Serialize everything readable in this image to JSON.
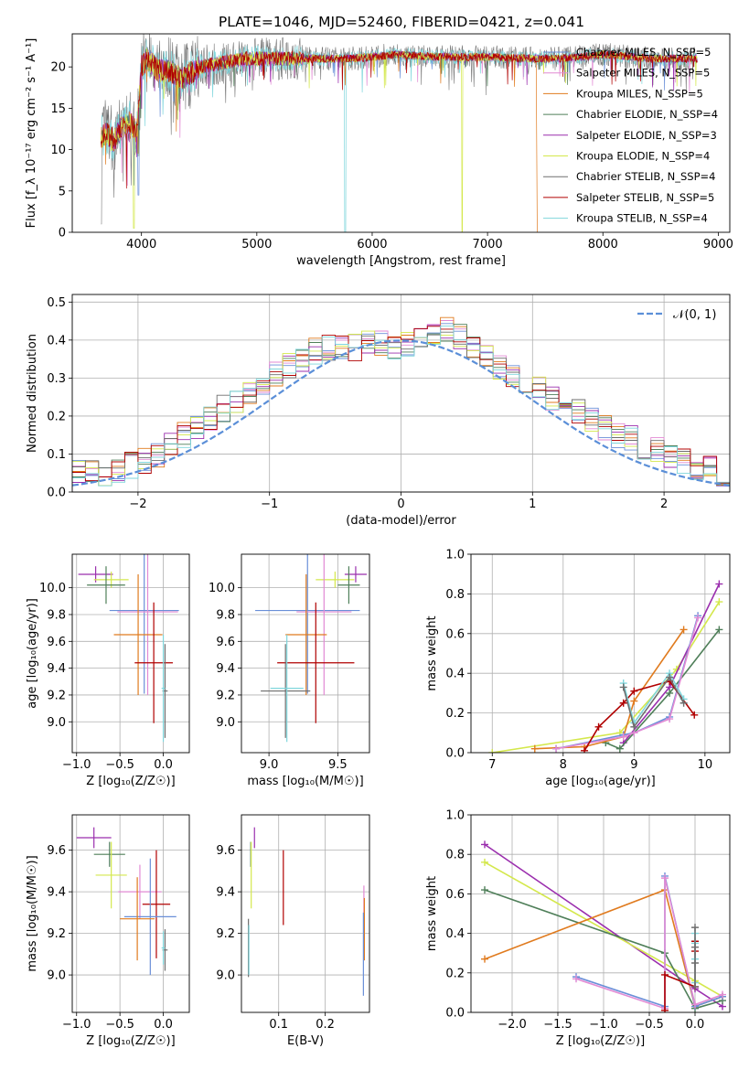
{
  "figure_title": "PLATE=1046, MJD=52460, FIBERID=0421, z=0.041",
  "colors": {
    "chabrier_miles": "#6a8fd8",
    "salpeter_miles": "#e28ad4",
    "kroupa_miles": "#e07b1f",
    "chabrier_elodie": "#4f7f59",
    "salpeter_elodie": "#9b2fae",
    "kroupa_elodie": "#d4e84c",
    "chabrier_stelib": "#6e6e6e",
    "salpeter_stelib": "#b00000",
    "kroupa_stelib": "#7fd6dc",
    "normal_curve": "#5b8fd8",
    "grid": "#b0b0b0"
  },
  "chart_data": [
    {
      "id": "spectrum",
      "type": "line",
      "title": "PLATE=1046, MJD=52460, FIBERID=0421, z=0.041",
      "xlabel": "wavelength [Angstrom, rest frame]",
      "ylabel": "Flux [f_λ 10⁻¹⁷ erg cm⁻² s⁻¹ A⁻¹]",
      "xlim": [
        3400,
        9100
      ],
      "ylim": [
        0,
        24
      ],
      "xticks": [
        "4000",
        "5000",
        "6000",
        "7000",
        "8000",
        "9000"
      ],
      "yticks": [
        "0",
        "5",
        "10",
        "15",
        "20"
      ],
      "grid": false,
      "legend_position": "right",
      "continuum": {
        "x": [
          3650,
          3700,
          3760,
          3820,
          3900,
          3960,
          4000,
          4050,
          4150,
          4250,
          4350,
          4500,
          4700,
          4900,
          5100,
          5300,
          5500,
          5800,
          6000,
          6200,
          6400,
          6600,
          6800,
          7000,
          7200,
          7400,
          7600,
          7800,
          8000,
          8200,
          8400,
          8600,
          8800
        ],
        "y": [
          11.5,
          12.0,
          11.0,
          12.5,
          13.5,
          12.0,
          20.0,
          21.0,
          19.5,
          19.5,
          18.5,
          20.0,
          20.5,
          21.0,
          21.0,
          21.0,
          21.0,
          21.0,
          21.2,
          21.5,
          21.3,
          21.2,
          21.2,
          21.2,
          21.1,
          21.0,
          21.0,
          21.2,
          21.5,
          21.3,
          21.0,
          21.0,
          21.0
        ]
      },
      "features": {
        "chabrier_stelib_drop": [
          3650,
          1.0
        ],
        "kroupa_elodie_drop": [
          3935,
          0.5
        ],
        "chabrier_miles_drop": [
          3975,
          4.5
        ],
        "kroupa_stelib_gap": [
          5765,
          0.0
        ],
        "kroupa_elodie_gap": [
          6780,
          0.0
        ],
        "kroupa_miles_cut": [
          7425,
          0.0
        ]
      },
      "series": [
        {
          "name": "Chabrier MILES, N_SSP=5",
          "color": "#6a8fd8"
        },
        {
          "name": "Salpeter MILES, N_SSP=5",
          "color": "#e28ad4"
        },
        {
          "name": "Kroupa MILES, N_SSP=5",
          "color": "#e07b1f"
        },
        {
          "name": "Chabrier ELODIE, N_SSP=4",
          "color": "#4f7f59"
        },
        {
          "name": "Salpeter ELODIE, N_SSP=3",
          "color": "#9b2fae"
        },
        {
          "name": "Kroupa ELODIE, N_SSP=4",
          "color": "#d4e84c"
        },
        {
          "name": "Chabrier STELIB, N_SSP=4",
          "color": "#6e6e6e"
        },
        {
          "name": "Salpeter STELIB, N_SSP=5",
          "color": "#b00000"
        },
        {
          "name": "Kroupa STELIB, N_SSP=4",
          "color": "#7fd6dc"
        }
      ]
    },
    {
      "id": "residuals",
      "type": "line",
      "xlabel": "(data-model)/error",
      "ylabel": "Normed distribution",
      "xlim": [
        -2.5,
        2.5
      ],
      "ylim": [
        0,
        0.52
      ],
      "xticks": [
        "−2",
        "−1",
        "0",
        "1",
        "2"
      ],
      "yticks": [
        "0.0",
        "0.1",
        "0.2",
        "0.3",
        "0.4",
        "0.5"
      ],
      "grid": true,
      "legend_position": "top-right",
      "legend": "𝒩(0, 1)",
      "bin_width": 0.1,
      "histogram_envelope": [
        0.03,
        0.03,
        0.05,
        0.05,
        0.05,
        0.06,
        0.07,
        0.08,
        0.1,
        0.12,
        0.15,
        0.17,
        0.19,
        0.22,
        0.24,
        0.26,
        0.28,
        0.31,
        0.33,
        0.35,
        0.37,
        0.38,
        0.38,
        0.38,
        0.39,
        0.39,
        0.38,
        0.39,
        0.4,
        0.42,
        0.43,
        0.41,
        0.38,
        0.36,
        0.33,
        0.31,
        0.29,
        0.27,
        0.25,
        0.23,
        0.21,
        0.19,
        0.17,
        0.15,
        0.14,
        0.12,
        0.11,
        0.09,
        0.08,
        0.06,
        0.06,
        0.05,
        0.04,
        0.04,
        0.03
      ],
      "normal": {
        "mu": 0,
        "sigma": 1
      }
    },
    {
      "id": "age_vs_Z",
      "type": "scatter",
      "xlabel": "Z [log₁₀(Z/Z☉)]",
      "ylabel": "age  [log₁₀(age/yr)]",
      "xlim": [
        -1.05,
        0.3
      ],
      "ylim": [
        8.77,
        10.25
      ],
      "xticks": [
        "−1.0",
        "−0.5",
        "0.0"
      ],
      "yticks": [
        "9.0",
        "9.2",
        "9.4",
        "9.6",
        "9.8",
        "10.0"
      ],
      "grid": true,
      "points": [
        {
          "series": "Salpeter ELODIE",
          "color": "#9b2fae",
          "x": -0.78,
          "xerr": 0.2,
          "y": 10.1,
          "yerr": 0.06
        },
        {
          "series": "Kroupa ELODIE",
          "color": "#d4e84c",
          "x": -0.6,
          "xerr": 0.2,
          "y": 10.06,
          "yerr": 0.06
        },
        {
          "series": "Chabrier ELODIE",
          "color": "#4f7f59",
          "x": -0.66,
          "xerr": 0.22,
          "y": 10.02,
          "yerr": 0.14
        },
        {
          "series": "Chabrier MILES",
          "color": "#6a8fd8",
          "x": -0.22,
          "xerr": 0.4,
          "y": 9.83,
          "yerr": 0.62
        },
        {
          "series": "Salpeter MILES",
          "color": "#e28ad4",
          "x": -0.18,
          "xerr": 0.35,
          "y": 9.82,
          "yerr": 0.62
        },
        {
          "series": "Kroupa MILES",
          "color": "#e07b1f",
          "x": -0.29,
          "xerr": 0.28,
          "y": 9.65,
          "yerr": 0.45
        },
        {
          "series": "Salpeter STELIB",
          "color": "#b00000",
          "x": -0.11,
          "xerr": 0.22,
          "y": 9.44,
          "yerr": 0.45
        },
        {
          "series": "Chabrier STELIB",
          "color": "#6e6e6e",
          "x": 0.02,
          "xerr": 0.03,
          "y": 9.23,
          "yerr": 0.35
        },
        {
          "series": "Kroupa STELIB",
          "color": "#7fd6dc",
          "x": 0.0,
          "xerr": 0.02,
          "y": 9.25,
          "yerr": 0.4
        }
      ]
    },
    {
      "id": "age_vs_mass",
      "type": "scatter",
      "xlabel": "mass [log₁₀(M/M☉)]",
      "xlim": [
        8.8,
        9.73
      ],
      "ylim": [
        8.77,
        10.25
      ],
      "xticks": [
        "9.0",
        "9.5"
      ],
      "yticks": [
        "9.0",
        "9.2",
        "9.4",
        "9.6",
        "9.8",
        "10.0"
      ],
      "grid": true,
      "points": [
        {
          "series": "Salpeter ELODIE",
          "color": "#9b2fae",
          "x": 9.63,
          "xerr": 0.08,
          "y": 10.1,
          "yerr": 0.06
        },
        {
          "series": "Kroupa ELODIE",
          "color": "#d4e84c",
          "x": 9.48,
          "xerr": 0.14,
          "y": 10.06,
          "yerr": 0.06
        },
        {
          "series": "Chabrier ELODIE",
          "color": "#4f7f59",
          "x": 9.58,
          "xerr": 0.08,
          "y": 10.02,
          "yerr": 0.14
        },
        {
          "series": "Chabrier MILES",
          "color": "#6a8fd8",
          "x": 9.28,
          "xerr": 0.38,
          "y": 9.83,
          "yerr": 0.62
        },
        {
          "series": "Salpeter MILES",
          "color": "#e28ad4",
          "x": 9.4,
          "xerr": 0.2,
          "y": 9.82,
          "yerr": 0.62
        },
        {
          "series": "Kroupa MILES",
          "color": "#e07b1f",
          "x": 9.27,
          "xerr": 0.15,
          "y": 9.65,
          "yerr": 0.45
        },
        {
          "series": "Salpeter STELIB",
          "color": "#b00000",
          "x": 9.34,
          "xerr": 0.28,
          "y": 9.44,
          "yerr": 0.45
        },
        {
          "series": "Chabrier STELIB",
          "color": "#6e6e6e",
          "x": 9.12,
          "xerr": 0.18,
          "y": 9.23,
          "yerr": 0.35
        },
        {
          "series": "Kroupa STELIB",
          "color": "#7fd6dc",
          "x": 9.13,
          "xerr": 0.12,
          "y": 9.25,
          "yerr": 0.4
        }
      ]
    },
    {
      "id": "mass_weight_vs_age",
      "type": "line",
      "xlabel": "age  [log₁₀(age/yr)]",
      "ylabel": "mass weight",
      "xlim": [
        6.7,
        10.35
      ],
      "ylim": [
        0,
        1.0
      ],
      "xticks": [
        "7",
        "8",
        "9",
        "10"
      ],
      "yticks": [
        "0.0",
        "0.2",
        "0.4",
        "0.6",
        "0.8",
        "1.0"
      ],
      "grid": true,
      "series": [
        {
          "name": "Kroupa ELODIE",
          "color": "#d4e84c",
          "x": [
            7.0,
            8.8,
            9.6,
            10.2
          ],
          "y": [
            0.0,
            0.1,
            0.42,
            0.76
          ]
        },
        {
          "name": "Salpeter ELODIE",
          "color": "#9b2fae",
          "x": [
            8.85,
            9.5,
            10.2
          ],
          "y": [
            0.05,
            0.33,
            0.85
          ]
        },
        {
          "name": "Chabrier ELODIE",
          "color": "#4f7f59",
          "x": [
            8.6,
            8.8,
            9.5,
            10.2
          ],
          "y": [
            0.05,
            0.02,
            0.3,
            0.62
          ]
        },
        {
          "name": "Kroupa MILES",
          "color": "#e07b1f",
          "x": [
            7.6,
            8.3,
            8.85,
            9.0,
            9.7
          ],
          "y": [
            0.02,
            0.03,
            0.08,
            0.26,
            0.62
          ]
        },
        {
          "name": "Chabrier MILES",
          "color": "#6a8fd8",
          "x": [
            7.9,
            8.85,
            9.0,
            9.5,
            9.9
          ],
          "y": [
            0.02,
            0.09,
            0.1,
            0.18,
            0.69
          ]
        },
        {
          "name": "Salpeter MILES",
          "color": "#e28ad4",
          "x": [
            7.9,
            8.85,
            9.0,
            9.5,
            9.9
          ],
          "y": [
            0.02,
            0.08,
            0.1,
            0.17,
            0.68
          ]
        },
        {
          "name": "Salpeter STELIB",
          "color": "#b00000",
          "x": [
            8.3,
            8.5,
            8.85,
            9.0,
            9.5,
            9.85
          ],
          "y": [
            0.01,
            0.13,
            0.25,
            0.31,
            0.36,
            0.19
          ]
        },
        {
          "name": "Kroupa STELIB",
          "color": "#7fd6dc",
          "x": [
            8.85,
            9.0,
            9.5,
            9.7
          ],
          "y": [
            0.35,
            0.15,
            0.4,
            0.27
          ]
        },
        {
          "name": "Chabrier STELIB",
          "color": "#6e6e6e",
          "x": [
            8.85,
            9.0,
            9.5,
            9.7
          ],
          "y": [
            0.33,
            0.13,
            0.38,
            0.25
          ]
        }
      ]
    },
    {
      "id": "mass_vs_Z",
      "type": "scatter",
      "xlabel": "Z [log₁₀(Z/Z☉)]",
      "ylabel": "mass [log₁₀(M/M☉)]",
      "xlim": [
        -1.05,
        0.3
      ],
      "ylim": [
        8.82,
        9.77
      ],
      "xticks": [
        "−1.0",
        "−0.5",
        "0.0"
      ],
      "yticks": [
        "9.0",
        "9.2",
        "9.4",
        "9.6"
      ],
      "grid": true,
      "points": [
        {
          "series": "Salpeter ELODIE",
          "color": "#9b2fae",
          "x": -0.8,
          "xerr": 0.2,
          "y": 9.66,
          "yerr": 0.05
        },
        {
          "series": "Chabrier ELODIE",
          "color": "#4f7f59",
          "x": -0.62,
          "xerr": 0.18,
          "y": 9.58,
          "yerr": 0.06
        },
        {
          "series": "Kroupa ELODIE",
          "color": "#d4e84c",
          "x": -0.6,
          "xerr": 0.18,
          "y": 9.48,
          "yerr": 0.16
        },
        {
          "series": "Salpeter MILES",
          "color": "#e28ad4",
          "x": -0.27,
          "xerr": 0.25,
          "y": 9.4,
          "yerr": 0.13
        },
        {
          "series": "Salpeter STELIB",
          "color": "#b00000",
          "x": -0.08,
          "xerr": 0.16,
          "y": 9.34,
          "yerr": 0.26
        },
        {
          "series": "Chabrier MILES",
          "color": "#6a8fd8",
          "x": -0.15,
          "xerr": 0.3,
          "y": 9.28,
          "yerr": 0.28
        },
        {
          "series": "Kroupa MILES",
          "color": "#e07b1f",
          "x": -0.3,
          "xerr": 0.2,
          "y": 9.27,
          "yerr": 0.2
        },
        {
          "series": "Chabrier STELIB",
          "color": "#6e6e6e",
          "x": 0.02,
          "xerr": 0.03,
          "y": 9.12,
          "yerr": 0.1
        },
        {
          "series": "Kroupa STELIB",
          "color": "#7fd6dc",
          "x": 0.0,
          "xerr": 0.02,
          "y": 9.13,
          "yerr": 0.08
        }
      ]
    },
    {
      "id": "mass_vs_ebv",
      "type": "scatter",
      "xlabel": "E(B-V)",
      "xlim": [
        0.02,
        0.295
      ],
      "ylim": [
        8.82,
        9.77
      ],
      "xticks": [
        "0.1",
        "0.2"
      ],
      "yticks": [
        "9.0",
        "9.2",
        "9.4",
        "9.6"
      ],
      "grid": true,
      "points": [
        {
          "series": "Salpeter ELODIE",
          "color": "#9b2fae",
          "x": 0.048,
          "y": 9.66,
          "yerr": 0.05
        },
        {
          "series": "Chabrier ELODIE",
          "color": "#4f7f59",
          "x": 0.04,
          "y": 9.58,
          "yerr": 0.06
        },
        {
          "series": "Kroupa ELODIE",
          "color": "#d4e84c",
          "x": 0.041,
          "y": 9.48,
          "yerr": 0.16
        },
        {
          "series": "Salpeter STELIB",
          "color": "#b00000",
          "x": 0.11,
          "y": 9.42,
          "yerr": 0.18
        },
        {
          "series": "Salpeter MILES",
          "color": "#e28ad4",
          "x": 0.283,
          "y": 9.3,
          "yerr": 0.13
        },
        {
          "series": "Kroupa MILES",
          "color": "#e07b1f",
          "x": 0.284,
          "y": 9.22,
          "yerr": 0.15
        },
        {
          "series": "Chabrier MILES",
          "color": "#6a8fd8",
          "x": 0.282,
          "y": 9.1,
          "yerr": 0.2
        },
        {
          "series": "Chabrier STELIB",
          "color": "#6e6e6e",
          "x": 0.035,
          "y": 9.13,
          "yerr": 0.14
        },
        {
          "series": "Kroupa STELIB",
          "color": "#7fd6dc",
          "x": 0.036,
          "y": 9.12,
          "yerr": 0.12
        }
      ]
    },
    {
      "id": "mass_weight_vs_Z",
      "type": "line",
      "xlabel": "Z [log₁₀(Z/Z☉)]",
      "ylabel": "mass weight",
      "xlim": [
        -2.45,
        0.38
      ],
      "ylim": [
        0,
        1.0
      ],
      "xticks": [
        "−2.0",
        "−1.5",
        "−1.0",
        "−0.5",
        "0.0"
      ],
      "yticks": [
        "0.0",
        "0.2",
        "0.4",
        "0.6",
        "0.8",
        "1.0"
      ],
      "grid": true,
      "series": [
        {
          "name": "Salpeter ELODIE",
          "color": "#9b2fae",
          "x": [
            -2.3,
            0.0,
            0.3
          ],
          "y": [
            0.85,
            0.12,
            0.03
          ]
        },
        {
          "name": "Kroupa ELODIE",
          "color": "#d4e84c",
          "x": [
            -2.3,
            0.0,
            0.3
          ],
          "y": [
            0.76,
            0.16,
            0.08
          ]
        },
        {
          "name": "Chabrier ELODIE",
          "color": "#4f7f59",
          "x": [
            -2.3,
            -0.33,
            0.0,
            0.3
          ],
          "y": [
            0.62,
            0.3,
            0.02,
            0.06
          ]
        },
        {
          "name": "Kroupa MILES",
          "color": "#e07b1f",
          "x": [
            -2.3,
            -0.33,
            0.0,
            0.3
          ],
          "y": [
            0.27,
            0.62,
            0.03,
            0.08
          ]
        },
        {
          "name": "Chabrier MILES",
          "color": "#6a8fd8",
          "x": [
            -1.3,
            -0.33,
            -0.33,
            0.0,
            0.3
          ],
          "y": [
            0.18,
            0.03,
            0.69,
            0.03,
            0.08
          ]
        },
        {
          "name": "Salpeter MILES",
          "color": "#e28ad4",
          "x": [
            -1.3,
            -0.33,
            -0.33,
            0.0,
            0.3
          ],
          "y": [
            0.17,
            0.02,
            0.68,
            0.04,
            0.09
          ]
        },
        {
          "name": "Salpeter STELIB",
          "color": "#b00000",
          "x": [
            -0.33,
            -0.33,
            0.0,
            0.0,
            0.0
          ],
          "y": [
            0.01,
            0.19,
            0.13,
            0.31,
            0.36
          ]
        },
        {
          "name": "Kroupa STELIB",
          "color": "#7fd6dc",
          "x": [
            0.0,
            0.0,
            0.0,
            0.0
          ],
          "y": [
            0.27,
            0.35,
            0.15,
            0.4
          ]
        },
        {
          "name": "Chabrier STELIB",
          "color": "#6e6e6e",
          "x": [
            0.0,
            0.0,
            0.0,
            0.0
          ],
          "y": [
            0.25,
            0.33,
            0.13,
            0.43
          ]
        }
      ]
    }
  ]
}
